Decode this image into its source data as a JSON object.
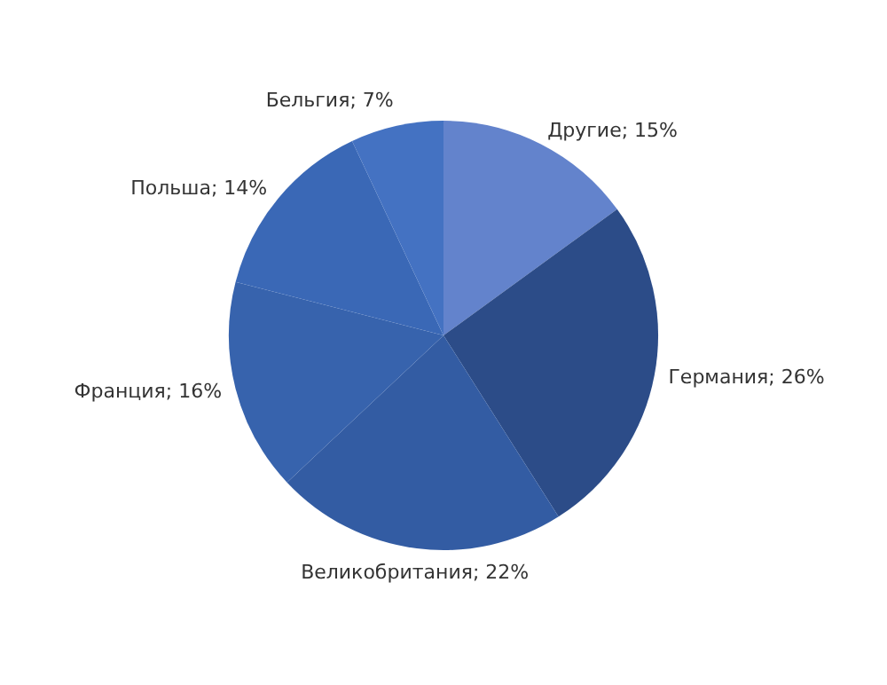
{
  "chart_data": {
    "type": "pie",
    "categories": [
      "Другие",
      "Германия",
      "Великобритания",
      "Франция",
      "Польша",
      "Бельгия"
    ],
    "values": [
      15,
      26,
      22,
      16,
      14,
      7
    ],
    "value_labels": [
      "15%",
      "26%",
      "22%",
      "16%",
      "14%",
      "7%"
    ],
    "colors": [
      "#6383cc",
      "#2c4c88",
      "#335ca3",
      "#3763ad",
      "#3a68b6",
      "#4472c2"
    ],
    "legend": false
  }
}
